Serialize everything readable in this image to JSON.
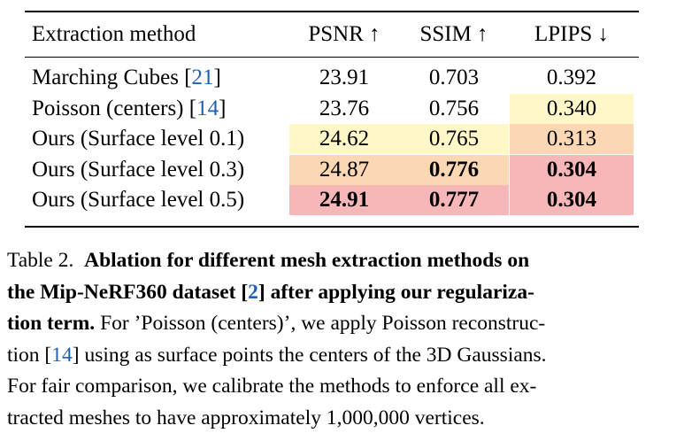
{
  "table": {
    "headers": {
      "method": "Extraction method",
      "psnr": "PSNR ↑",
      "ssim": "SSIM ↑",
      "lpips": "LPIPS ↓"
    },
    "rows": [
      {
        "method": "Marching Cubes ",
        "ref": "21",
        "ref_close": "]",
        "ref_open": "[",
        "psnr": "23.91",
        "ssim": "0.703",
        "lpips": "0.392"
      },
      {
        "method": "Poisson (centers) ",
        "ref": "14",
        "ref_close": "]",
        "ref_open": "[",
        "psnr": "23.76",
        "ssim": "0.756",
        "lpips": "0.340"
      },
      {
        "method": "Ours (Surface level 0.1)",
        "psnr": "24.62",
        "ssim": "0.765",
        "lpips": "0.313"
      },
      {
        "method": "Ours (Surface level 0.3)",
        "psnr": "24.87",
        "ssim": "0.776",
        "lpips": "0.304"
      },
      {
        "method": "Ours (Surface level 0.5)",
        "psnr": "24.91",
        "ssim": "0.777",
        "lpips": "0.304"
      }
    ],
    "highlight_colors": {
      "yellow": "#fff7c8",
      "orange": "#fbd7b4",
      "pink": "#f7b7b9"
    },
    "reference_color": "#1f5fb4"
  },
  "caption": {
    "label": "Table 2.",
    "line1_bold": "Ablation for different mesh extraction methods on",
    "line2_bold_a": "the Mip-NeRF360 dataset [",
    "line2_ref": "2",
    "line2_bold_b": "] after applying our regulariza-",
    "line3_bold": "tion term.",
    "line3_rest": " For ’Poisson (centers)’, we apply Poisson reconstruc-",
    "line4_a": "tion [",
    "line4_ref": "14",
    "line4_b": "] using as surface points the centers of the 3D Gaussians.",
    "line5": "For fair comparison, we calibrate the methods to enforce all ex-",
    "line6": "tracted meshes to have approximately 1,000,000 vertices."
  }
}
